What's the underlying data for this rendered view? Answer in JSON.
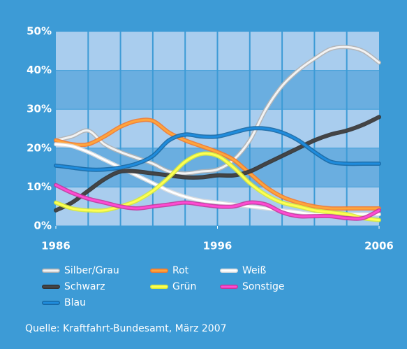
{
  "chart_data": {
    "type": "line",
    "x": [
      1986,
      1987,
      1988,
      1989,
      1990,
      1991,
      1992,
      1993,
      1994,
      1995,
      1996,
      1997,
      1998,
      1999,
      2000,
      2001,
      2002,
      2003,
      2004,
      2005,
      2006
    ],
    "xlim": [
      1986,
      2006
    ],
    "xticks": [
      1986,
      1996,
      2006
    ],
    "ylim": [
      0,
      50
    ],
    "yticks": [
      {
        "value": 0,
        "label": "0%"
      },
      {
        "value": 10,
        "label": "10%"
      },
      {
        "value": 20,
        "label": "20%"
      },
      {
        "value": 30,
        "label": "30%"
      },
      {
        "value": 40,
        "label": "40%"
      },
      {
        "value": 50,
        "label": "50%"
      }
    ],
    "grid": true,
    "legend": "bottom",
    "series": [
      {
        "name": "Silber/Grau",
        "color": "#b4b4b4",
        "values": [
          22,
          23,
          24.5,
          21,
          19,
          17.5,
          16,
          14,
          13.5,
          14,
          14.5,
          17,
          22,
          30,
          36,
          40,
          43,
          45.5,
          46,
          45,
          42
        ]
      },
      {
        "name": "Rot",
        "color": "#f47a2c",
        "values": [
          22,
          21,
          21,
          23,
          25.5,
          27,
          27,
          24,
          22,
          20.5,
          19,
          17,
          13.5,
          10,
          7.5,
          6,
          5,
          4.5,
          4.5,
          4.5,
          4.5
        ]
      },
      {
        "name": "Weiß",
        "color": "#ffffff",
        "values": [
          21,
          20.5,
          19,
          17,
          15,
          13,
          11,
          9,
          7.5,
          6.5,
          6,
          5.5,
          5,
          4.5,
          4,
          3.5,
          3,
          3,
          3,
          3,
          3
        ]
      },
      {
        "name": "Schwarz",
        "color": "#333333",
        "values": [
          4,
          6,
          9,
          12,
          14,
          14,
          13.5,
          13,
          12.5,
          12.5,
          13,
          13,
          14,
          16,
          18,
          20,
          22,
          23.5,
          24.5,
          26,
          28
        ]
      },
      {
        "name": "Grün",
        "color": "#d6ea3c",
        "values": [
          6,
          4.5,
          4,
          4,
          5,
          6.5,
          9,
          12.5,
          16.5,
          18.5,
          18,
          15,
          11,
          8,
          6,
          5,
          4,
          3.5,
          3,
          2,
          1.5
        ]
      },
      {
        "name": "Sonstige",
        "color": "#c4379c",
        "values": [
          10.5,
          8.5,
          7,
          6,
          5,
          4.5,
          5,
          5.5,
          6,
          5.5,
          5,
          5,
          6,
          5.5,
          3.5,
          2.5,
          2.5,
          2.5,
          2,
          2,
          4
        ]
      },
      {
        "name": "Blau",
        "color": "#1768a4",
        "values": [
          15.5,
          15,
          14.5,
          14.5,
          15,
          16,
          18,
          22,
          23.5,
          23,
          23,
          24,
          25,
          25,
          24,
          22,
          19,
          16.5,
          16,
          16,
          16
        ]
      }
    ],
    "source": "Quelle: Kraftfahrt-Bundesamt, März 2007"
  }
}
